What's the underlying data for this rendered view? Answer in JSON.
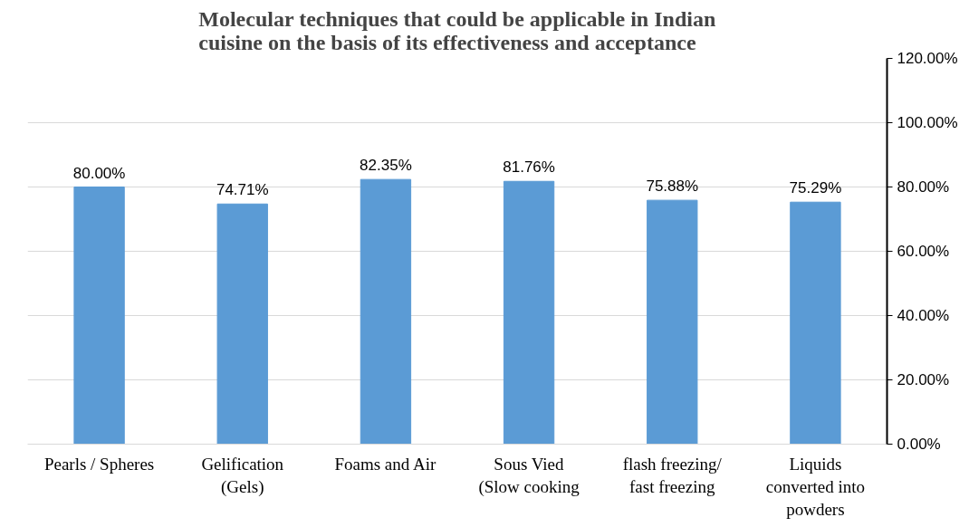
{
  "chart_data": {
    "type": "bar",
    "title": "Molecular techniques that could be applicable in Indian cuisine on the basis of its effectiveness and acceptance",
    "categories": [
      "Pearls / Spheres",
      "Gelification\n(Gels)",
      "Foams and Air",
      "Sous Vied\n(Slow cooking",
      "flash freezing/\nfast freezing",
      "Liquids\nconverted into\npowders"
    ],
    "values": [
      80.0,
      74.71,
      82.35,
      81.76,
      75.88,
      75.29
    ],
    "value_labels": [
      "80.00%",
      "74.71%",
      "82.35%",
      "81.76%",
      "75.88%",
      "75.29%"
    ],
    "color": "#5b9bd5",
    "ylim": [
      0,
      120
    ],
    "yticks": [
      {
        "value": 0,
        "label": "0.00%"
      },
      {
        "value": 20,
        "label": "20.00%"
      },
      {
        "value": 40,
        "label": "40.00%"
      },
      {
        "value": 60,
        "label": "60.00%"
      },
      {
        "value": 80,
        "label": "80.00%"
      },
      {
        "value": 100,
        "label": "100.00%"
      },
      {
        "value": 120,
        "label": "120.00%"
      }
    ],
    "grid": "y"
  }
}
